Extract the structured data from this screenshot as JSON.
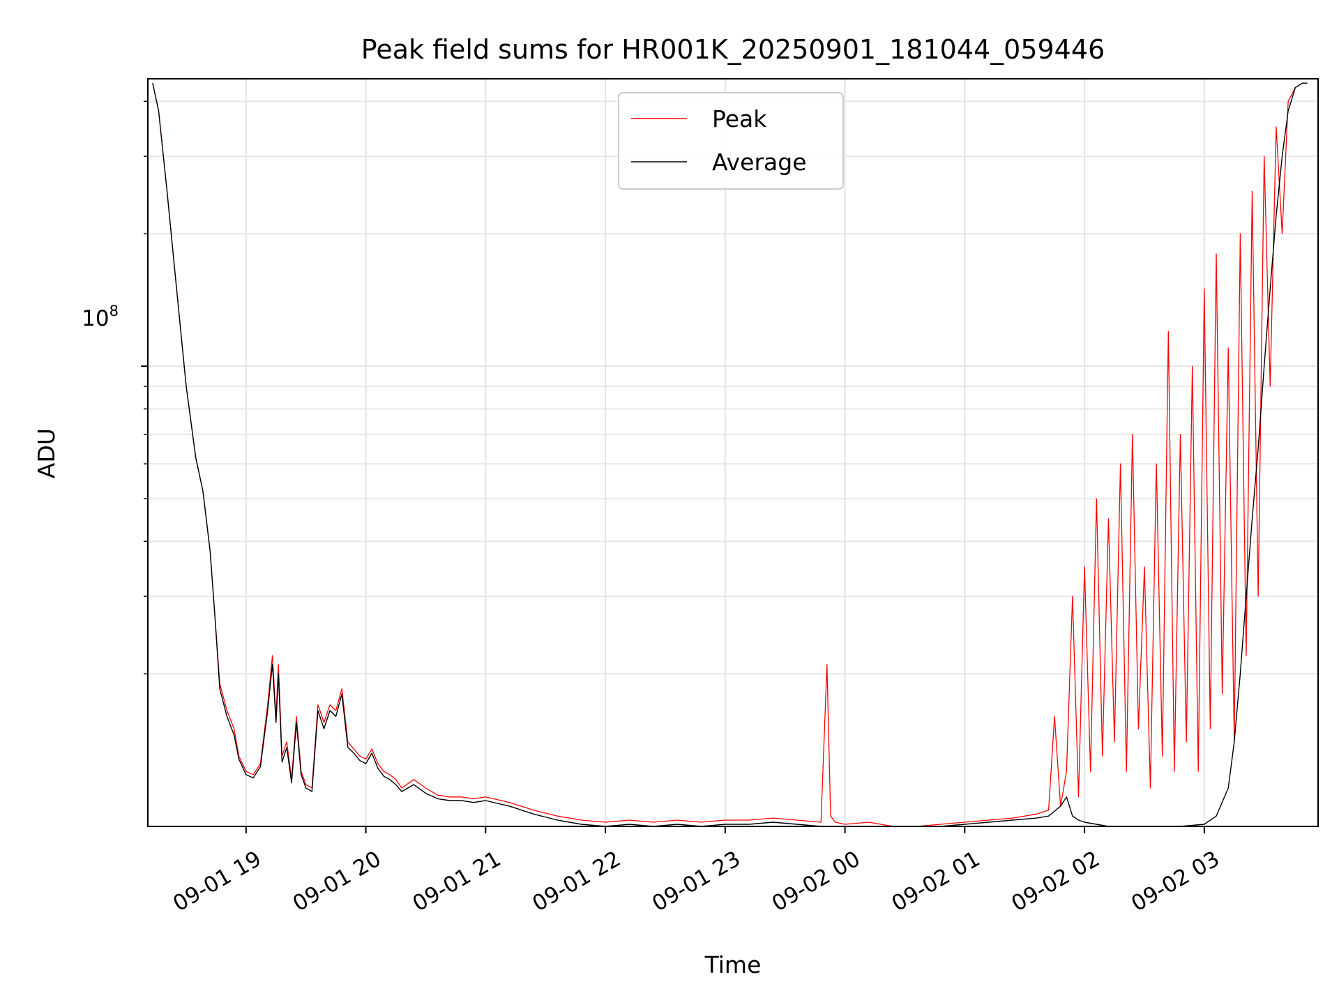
{
  "chart_data": {
    "type": "line",
    "title": "Peak field sums for HR001K_20250901_181044_059446",
    "xlabel": "Time",
    "ylabel": "ADU",
    "yscale": "log",
    "ylim": [
      9000000,
      450000000
    ],
    "xlim_hours": [
      -0.82,
      8.95
    ],
    "grid": true,
    "legend_position": "top-center",
    "x_tick_labels": [
      "09-01 19",
      "09-01 20",
      "09-01 21",
      "09-01 22",
      "09-01 23",
      "09-02 00",
      "09-02 01",
      "09-02 02",
      "09-02 03"
    ],
    "x_tick_hours": [
      0,
      1,
      2,
      3,
      4,
      5,
      6,
      7,
      8
    ],
    "y_major_tick_label": {
      "base": "10",
      "exponent": "8"
    },
    "y_major_tick_value": 100000000,
    "y_minor_tick_values": [
      20000000,
      30000000,
      40000000,
      50000000,
      60000000,
      70000000,
      80000000,
      90000000,
      200000000,
      300000000,
      400000000
    ],
    "x_unit": "hours since 2025-09-01 19:00",
    "series": [
      {
        "name": "Peak",
        "color": "#ff0000",
        "x": [
          -0.78,
          -0.73,
          -0.66,
          -0.58,
          -0.5,
          -0.42,
          -0.36,
          -0.3,
          -0.26,
          -0.22,
          -0.16,
          -0.1,
          -0.06,
          0,
          0.06,
          0.12,
          0.18,
          0.22,
          0.25,
          0.27,
          0.3,
          0.34,
          0.38,
          0.42,
          0.46,
          0.5,
          0.55,
          0.6,
          0.65,
          0.7,
          0.75,
          0.8,
          0.85,
          0.9,
          0.95,
          1.0,
          1.05,
          1.1,
          1.15,
          1.2,
          1.25,
          1.3,
          1.4,
          1.5,
          1.6,
          1.7,
          1.8,
          1.9,
          2.0,
          2.2,
          2.4,
          2.6,
          2.8,
          3.0,
          3.2,
          3.4,
          3.6,
          3.8,
          4.0,
          4.2,
          4.4,
          4.6,
          4.8,
          4.85,
          4.88,
          4.92,
          5.0,
          5.2,
          5.4,
          5.6,
          5.8,
          6.0,
          6.2,
          6.4,
          6.6,
          6.7,
          6.75,
          6.8,
          6.85,
          6.9,
          6.95,
          7.0,
          7.05,
          7.1,
          7.15,
          7.2,
          7.25,
          7.3,
          7.35,
          7.4,
          7.45,
          7.5,
          7.55,
          7.6,
          7.65,
          7.7,
          7.75,
          7.8,
          7.85,
          7.9,
          7.95,
          8.0,
          8.05,
          8.1,
          8.15,
          8.2,
          8.25,
          8.3,
          8.35,
          8.4,
          8.45,
          8.5,
          8.55,
          8.6,
          8.65,
          8.7,
          8.76,
          8.82,
          8.86
        ],
        "values": [
          440000000,
          380000000,
          250000000,
          150000000,
          90000000,
          62000000,
          52000000,
          38000000,
          27000000,
          19000000,
          16500000,
          15000000,
          13000000,
          12000000,
          11800000,
          12500000,
          17000000,
          22000000,
          16000000,
          21000000,
          13000000,
          14000000,
          11500000,
          16000000,
          12000000,
          11200000,
          11000000,
          17000000,
          15500000,
          17000000,
          16500000,
          18500000,
          14000000,
          13500000,
          13000000,
          12800000,
          13500000,
          12500000,
          12000000,
          11800000,
          11500000,
          11000000,
          11500000,
          11000000,
          10600000,
          10500000,
          10500000,
          10400000,
          10500000,
          10200000,
          9800000,
          9500000,
          9300000,
          9200000,
          9300000,
          9200000,
          9300000,
          9200000,
          9300000,
          9300000,
          9400000,
          9300000,
          9200000,
          21000000,
          9500000,
          9200000,
          9100000,
          9200000,
          9000000,
          9000000,
          9100000,
          9200000,
          9300000,
          9400000,
          9600000,
          9800000,
          16000000,
          10000000,
          12000000,
          30000000,
          10500000,
          35000000,
          12000000,
          50000000,
          13000000,
          45000000,
          14000000,
          60000000,
          12000000,
          70000000,
          15000000,
          35000000,
          11000000,
          60000000,
          13000000,
          120000000,
          12000000,
          70000000,
          14000000,
          100000000,
          12000000,
          150000000,
          15000000,
          180000000,
          18000000,
          110000000,
          14000000,
          200000000,
          22000000,
          250000000,
          30000000,
          300000000,
          90000000,
          350000000,
          200000000,
          400000000,
          430000000,
          440000000,
          440000000
        ]
      },
      {
        "name": "Average",
        "color": "#000000",
        "x": [
          -0.78,
          -0.73,
          -0.66,
          -0.58,
          -0.5,
          -0.42,
          -0.36,
          -0.3,
          -0.26,
          -0.22,
          -0.16,
          -0.1,
          -0.06,
          0,
          0.06,
          0.12,
          0.18,
          0.22,
          0.25,
          0.27,
          0.3,
          0.34,
          0.38,
          0.42,
          0.46,
          0.5,
          0.55,
          0.6,
          0.65,
          0.7,
          0.75,
          0.8,
          0.85,
          0.9,
          0.95,
          1.0,
          1.05,
          1.1,
          1.15,
          1.2,
          1.25,
          1.3,
          1.4,
          1.5,
          1.6,
          1.7,
          1.8,
          1.9,
          2.0,
          2.2,
          2.4,
          2.6,
          2.8,
          3.0,
          3.2,
          3.4,
          3.6,
          3.8,
          4.0,
          4.2,
          4.4,
          4.6,
          4.8,
          5.0,
          5.2,
          5.4,
          5.6,
          5.8,
          6.0,
          6.2,
          6.4,
          6.6,
          6.7,
          6.8,
          6.85,
          6.9,
          6.95,
          7.0,
          7.2,
          7.4,
          7.6,
          7.8,
          8.0,
          8.1,
          8.2,
          8.25,
          8.3,
          8.35,
          8.4,
          8.45,
          8.5,
          8.55,
          8.6,
          8.65,
          8.7,
          8.76,
          8.82,
          8.86
        ],
        "values": [
          440000000,
          380000000,
          250000000,
          150000000,
          90000000,
          62000000,
          52000000,
          38000000,
          27000000,
          18500000,
          16000000,
          14500000,
          12800000,
          11800000,
          11600000,
          12300000,
          16500000,
          21000000,
          15500000,
          20000000,
          12600000,
          13600000,
          11300000,
          15500000,
          11800000,
          11000000,
          10800000,
          16500000,
          15000000,
          16500000,
          16000000,
          18000000,
          13600000,
          13200000,
          12700000,
          12500000,
          13200000,
          12200000,
          11700000,
          11500000,
          11200000,
          10800000,
          11200000,
          10700000,
          10400000,
          10300000,
          10300000,
          10200000,
          10300000,
          10000000,
          9600000,
          9300000,
          9100000,
          9000000,
          9100000,
          9000000,
          9100000,
          9000000,
          9100000,
          9100000,
          9200000,
          9100000,
          9000000,
          8900000,
          8800000,
          8800000,
          8900000,
          9000000,
          9100000,
          9200000,
          9300000,
          9400000,
          9500000,
          10000000,
          10500000,
          9500000,
          9300000,
          9200000,
          9000000,
          8900000,
          8800000,
          8900000,
          9100000,
          9500000,
          11000000,
          14000000,
          20000000,
          30000000,
          45000000,
          65000000,
          100000000,
          150000000,
          220000000,
          300000000,
          380000000,
          430000000,
          440000000,
          440000000
        ]
      }
    ]
  }
}
